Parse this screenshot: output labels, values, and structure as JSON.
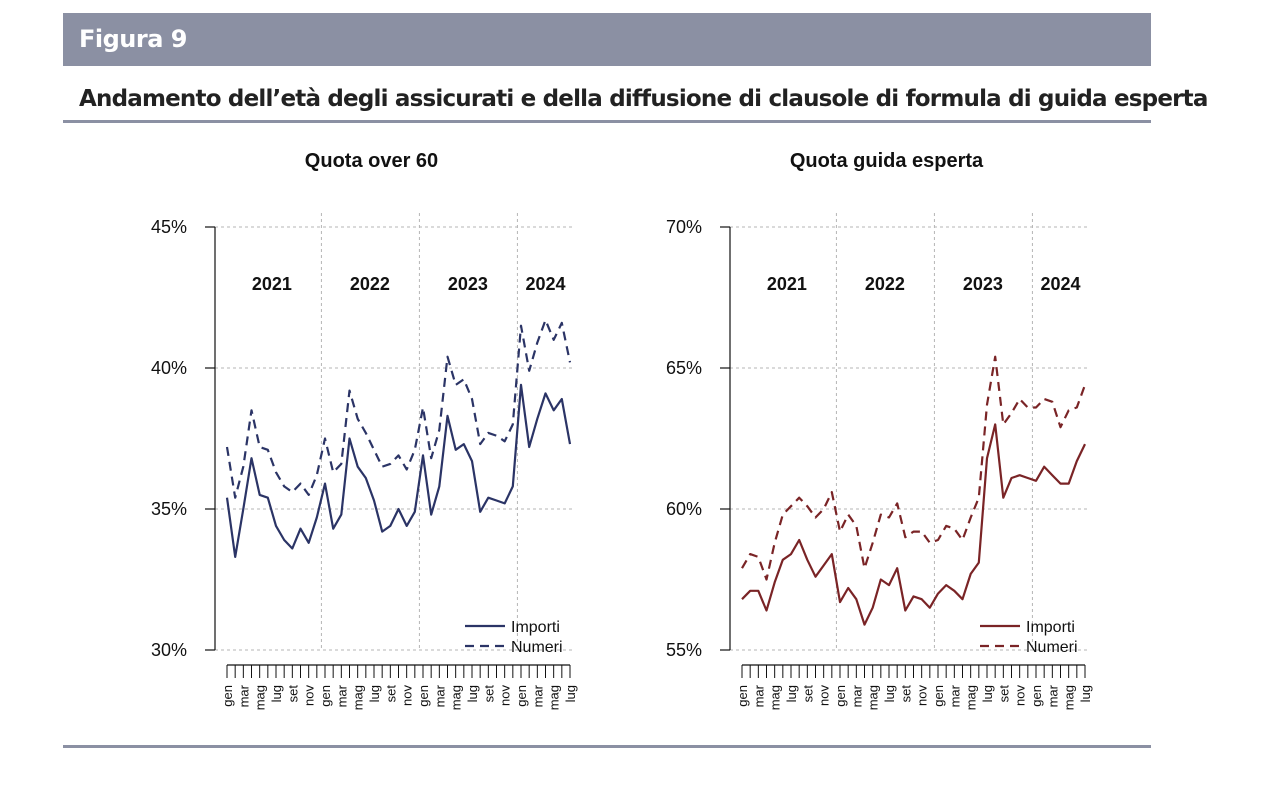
{
  "figure": {
    "label": "Figura 9",
    "title": "Andamento dell’età degli assicurati e della diffusione di clausole di formula di guida esperta"
  },
  "chart_data": [
    {
      "type": "line",
      "title": "Quota over 60",
      "ylim": [
        30,
        45
      ],
      "yticks": [
        "30%",
        "35%",
        "40%",
        "45%"
      ],
      "grid": true,
      "legend": "bottom-right",
      "year_labels": [
        "2021",
        "2022",
        "2023",
        "2024"
      ],
      "x_tick_labels": [
        "gen",
        "mar",
        "mag",
        "lug",
        "set",
        "nov",
        "gen",
        "mar",
        "mag",
        "lug",
        "set",
        "nov",
        "gen",
        "mar",
        "mag",
        "lug",
        "set",
        "nov",
        "gen",
        "mar",
        "mag",
        "lug"
      ],
      "x": [
        "2021-01",
        "2021-02",
        "2021-03",
        "2021-04",
        "2021-05",
        "2021-06",
        "2021-07",
        "2021-08",
        "2021-09",
        "2021-10",
        "2021-11",
        "2021-12",
        "2022-01",
        "2022-02",
        "2022-03",
        "2022-04",
        "2022-05",
        "2022-06",
        "2022-07",
        "2022-08",
        "2022-09",
        "2022-10",
        "2022-11",
        "2022-12",
        "2023-01",
        "2023-02",
        "2023-03",
        "2023-04",
        "2023-05",
        "2023-06",
        "2023-07",
        "2023-08",
        "2023-09",
        "2023-10",
        "2023-11",
        "2023-12",
        "2024-01",
        "2024-02",
        "2024-03",
        "2024-04",
        "2024-05",
        "2024-06",
        "2024-07"
      ],
      "color": "#2b3466",
      "series": [
        {
          "name": "Importi",
          "style": "solid",
          "values": [
            35.4,
            33.3,
            35.0,
            36.8,
            35.5,
            35.4,
            34.4,
            33.9,
            33.6,
            34.3,
            33.8,
            34.7,
            35.9,
            34.3,
            34.8,
            37.5,
            36.5,
            36.1,
            35.3,
            34.2,
            34.4,
            35.0,
            34.4,
            34.9,
            36.9,
            34.8,
            35.8,
            38.3,
            37.1,
            37.3,
            36.7,
            34.9,
            35.4,
            35.3,
            35.2,
            35.8,
            39.4,
            37.2,
            38.2,
            39.1,
            38.5,
            38.9,
            37.3
          ]
        },
        {
          "name": "Numeri",
          "style": "dashed",
          "values": [
            37.2,
            35.4,
            36.5,
            38.5,
            37.2,
            37.1,
            36.3,
            35.8,
            35.6,
            35.9,
            35.5,
            36.2,
            37.5,
            36.3,
            36.6,
            39.2,
            38.2,
            37.7,
            37.1,
            36.5,
            36.6,
            36.9,
            36.4,
            37.1,
            38.6,
            36.8,
            37.8,
            40.4,
            39.4,
            39.6,
            38.9,
            37.3,
            37.7,
            37.6,
            37.4,
            38.0,
            41.5,
            39.9,
            40.9,
            41.7,
            41.0,
            41.6,
            40.2
          ]
        }
      ]
    },
    {
      "type": "line",
      "title": "Quota guida esperta",
      "ylim": [
        55,
        70
      ],
      "yticks": [
        "55%",
        "60%",
        "65%",
        "70%"
      ],
      "grid": true,
      "legend": "bottom-right",
      "year_labels": [
        "2021",
        "2022",
        "2023",
        "2024"
      ],
      "x_tick_labels": [
        "gen",
        "mar",
        "mag",
        "lug",
        "set",
        "nov",
        "gen",
        "mar",
        "mag",
        "lug",
        "set",
        "nov",
        "gen",
        "mar",
        "mag",
        "lug",
        "set",
        "nov",
        "gen",
        "mar",
        "mag",
        "lug"
      ],
      "x": [
        "2021-01",
        "2021-02",
        "2021-03",
        "2021-04",
        "2021-05",
        "2021-06",
        "2021-07",
        "2021-08",
        "2021-09",
        "2021-10",
        "2021-11",
        "2021-12",
        "2022-01",
        "2022-02",
        "2022-03",
        "2022-04",
        "2022-05",
        "2022-06",
        "2022-07",
        "2022-08",
        "2022-09",
        "2022-10",
        "2022-11",
        "2022-12",
        "2023-01",
        "2023-02",
        "2023-03",
        "2023-04",
        "2023-05",
        "2023-06",
        "2023-07",
        "2023-08",
        "2023-09",
        "2023-10",
        "2023-11",
        "2023-12",
        "2024-01",
        "2024-02",
        "2024-03",
        "2024-04",
        "2024-05",
        "2024-06",
        "2024-07"
      ],
      "color": "#7a2426",
      "series": [
        {
          "name": "Importi",
          "style": "solid",
          "values": [
            56.8,
            57.1,
            57.1,
            56.4,
            57.4,
            58.2,
            58.4,
            58.9,
            58.2,
            57.6,
            58.0,
            58.4,
            56.7,
            57.2,
            56.8,
            55.9,
            56.5,
            57.5,
            57.3,
            57.9,
            56.4,
            56.9,
            56.8,
            56.5,
            57.0,
            57.3,
            57.1,
            56.8,
            57.7,
            58.1,
            61.8,
            63.0,
            60.4,
            61.1,
            61.2,
            61.1,
            61.0,
            61.5,
            61.2,
            60.9,
            60.9,
            61.7,
            62.3
          ]
        },
        {
          "name": "Numeri",
          "style": "dashed",
          "values": [
            57.9,
            58.4,
            58.3,
            57.5,
            58.8,
            59.8,
            60.1,
            60.4,
            60.1,
            59.7,
            60.0,
            60.6,
            59.2,
            59.8,
            59.4,
            57.9,
            58.8,
            59.8,
            59.7,
            60.2,
            59.0,
            59.2,
            59.2,
            58.8,
            58.9,
            59.4,
            59.3,
            58.9,
            59.7,
            60.4,
            63.7,
            65.4,
            63.0,
            63.4,
            63.9,
            63.6,
            63.6,
            63.9,
            63.8,
            62.9,
            63.5,
            63.6,
            64.4
          ]
        }
      ]
    }
  ]
}
